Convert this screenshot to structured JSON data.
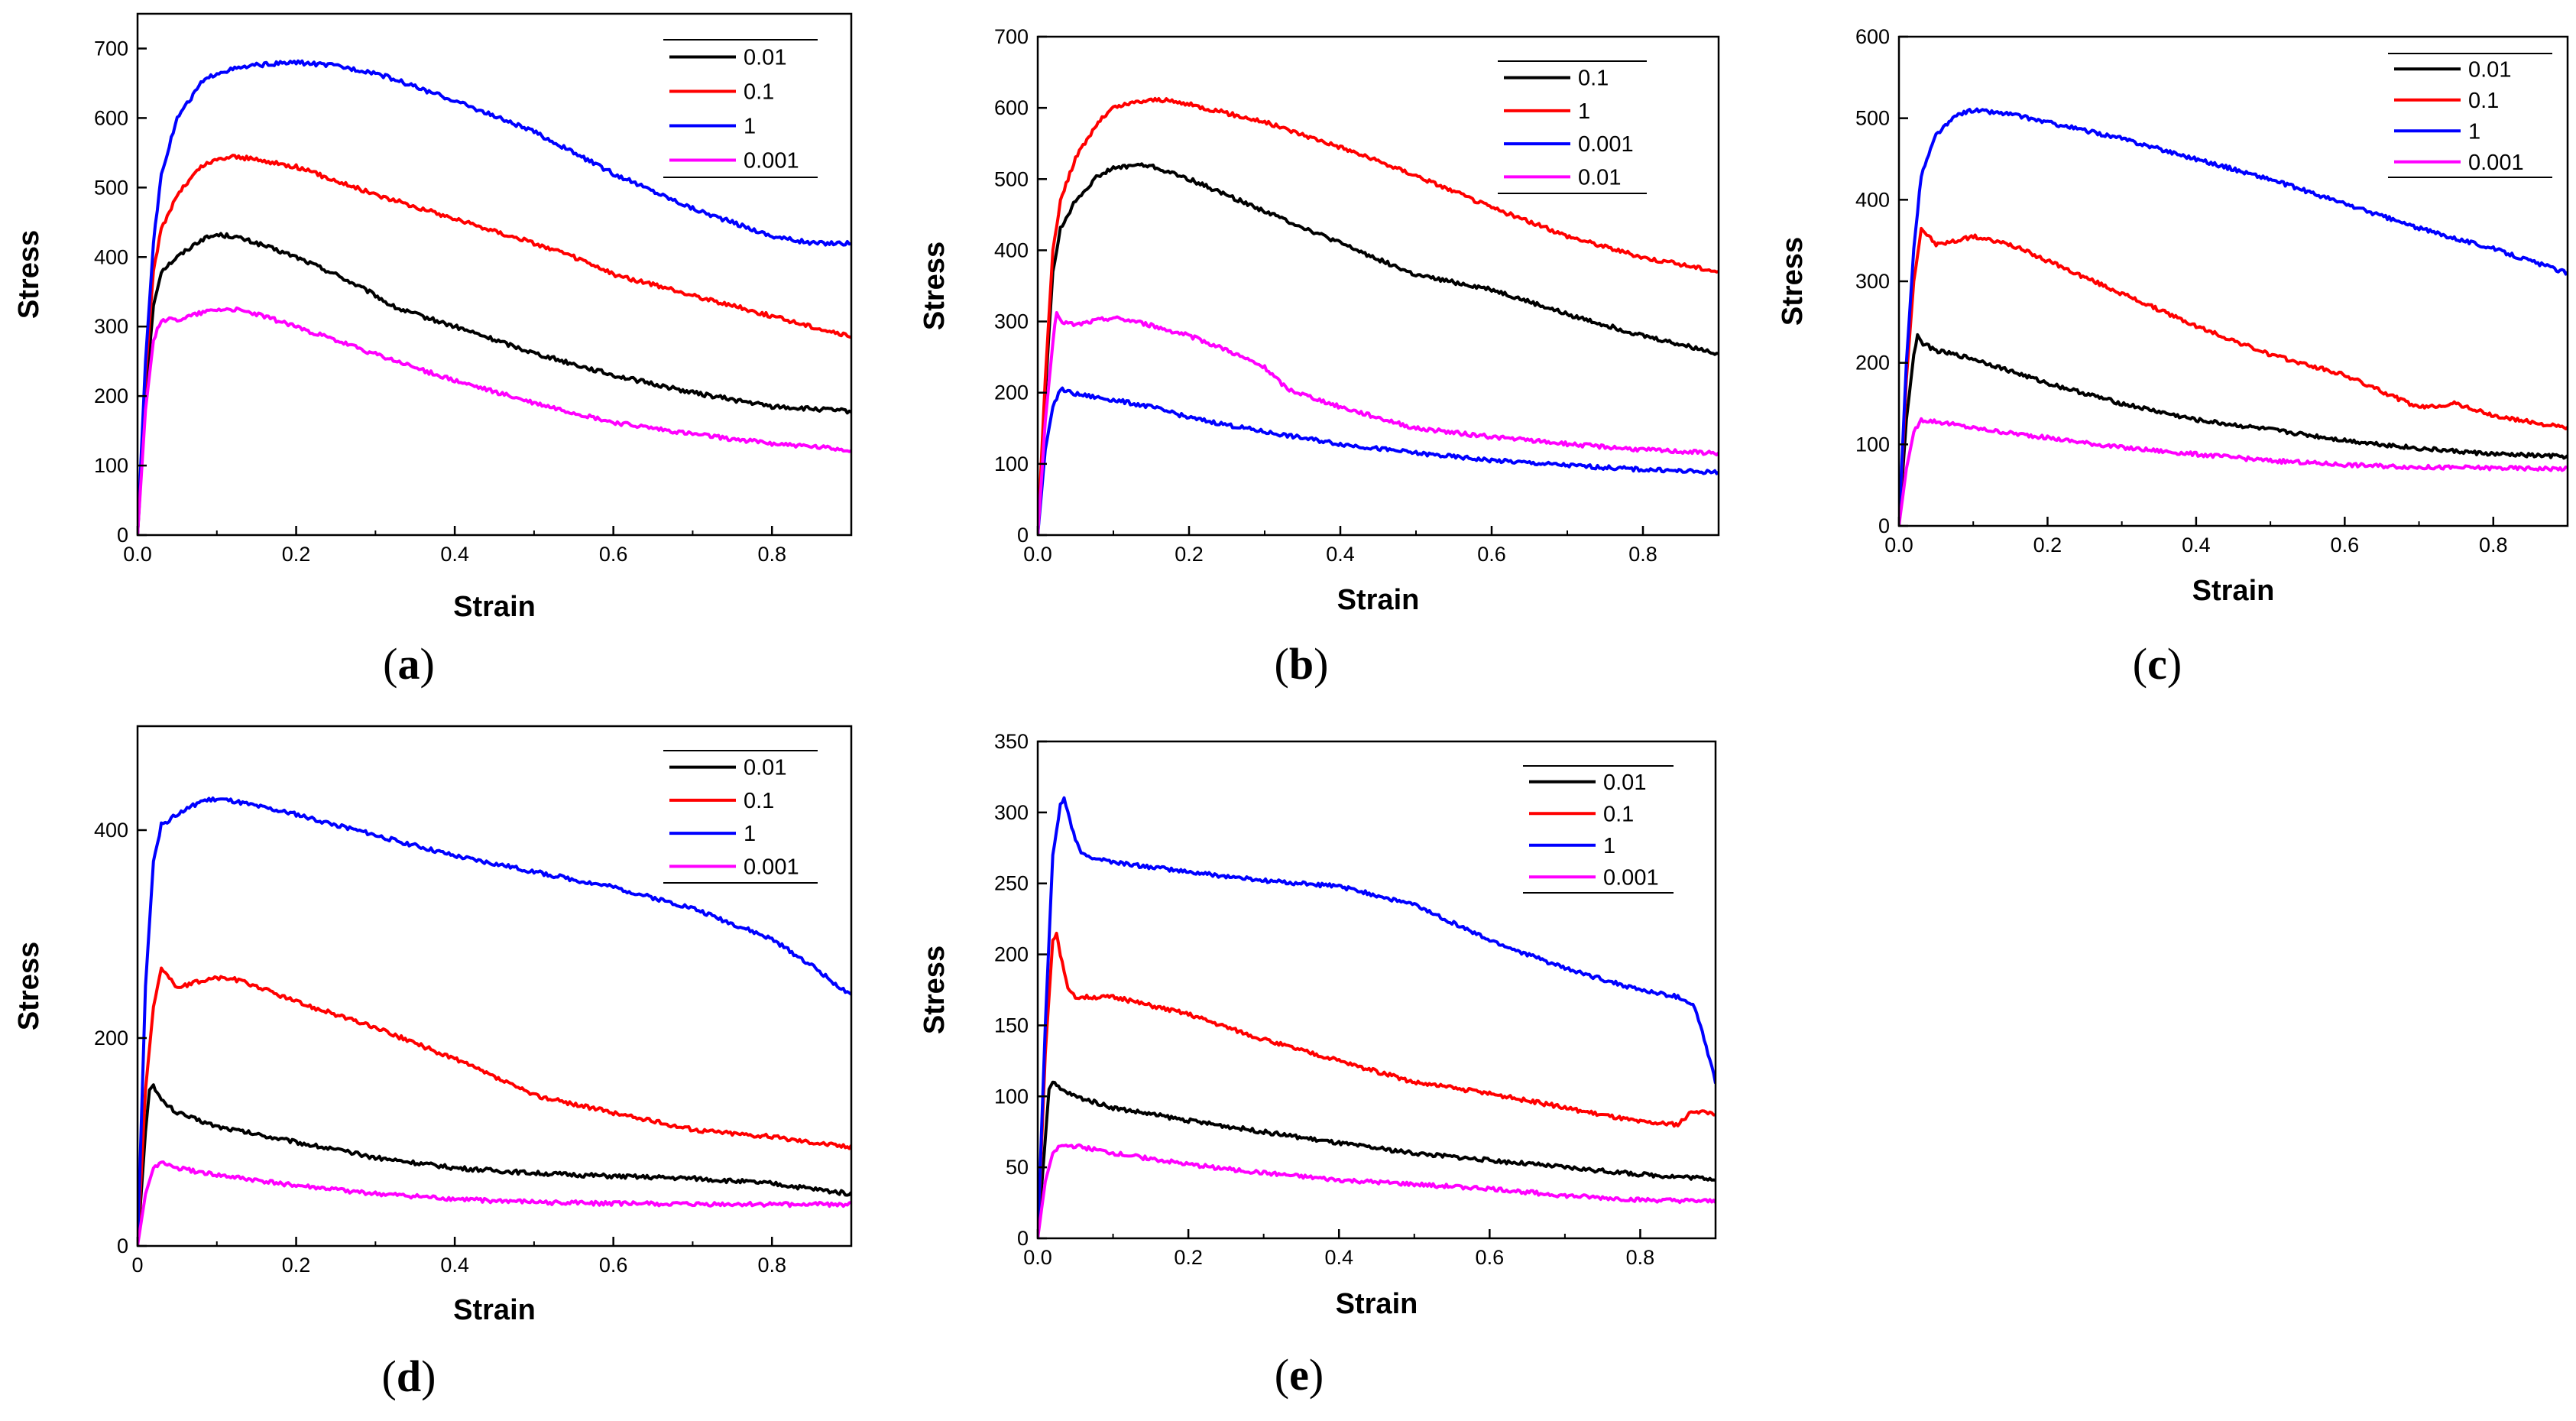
{
  "figure": {
    "description_labels": [
      "(a)",
      "(b)",
      "(c)",
      "(d)",
      "(e)"
    ]
  },
  "colors": {
    "0.01": "#000000",
    "0.1": "#ff0000",
    "1": "#0000ff",
    "0.001": "#ff00ff"
  },
  "chart_data": [
    {
      "type": "line",
      "panel_label": {
        "open": "(",
        "letter": "a",
        "close": ")"
      },
      "xlabel": "Strain",
      "ylabel": "Stress",
      "xlim": [
        0,
        0.9
      ],
      "ylim": [
        0,
        750
      ],
      "xticks": [
        "0.0",
        "0.2",
        "0.4",
        "0.6",
        "0.8"
      ],
      "xtick_values": [
        0,
        0.2,
        0.4,
        0.6,
        0.8
      ],
      "yticks": [
        "0",
        "100",
        "200",
        "300",
        "400",
        "500",
        "600",
        "700"
      ],
      "ytick_values": [
        0,
        100,
        200,
        300,
        400,
        500,
        600,
        700
      ],
      "legend_position": "top-right",
      "legend_order": [
        "0.01",
        "0.1",
        "1",
        "0.001"
      ],
      "series": [
        {
          "name": "0.01",
          "color": "#000000",
          "x": [
            0,
            0.01,
            0.02,
            0.03,
            0.05,
            0.08,
            0.1,
            0.12,
            0.15,
            0.2,
            0.25,
            0.3,
            0.32,
            0.33,
            0.4,
            0.5,
            0.6,
            0.7,
            0.8,
            0.9
          ],
          "y": [
            0,
            200,
            330,
            380,
            400,
            425,
            432,
            430,
            420,
            400,
            375,
            345,
            330,
            325,
            300,
            262,
            230,
            205,
            185,
            178
          ]
        },
        {
          "name": "0.1",
          "color": "#ff0000",
          "x": [
            0,
            0.01,
            0.02,
            0.03,
            0.05,
            0.08,
            0.1,
            0.12,
            0.15,
            0.2,
            0.3,
            0.4,
            0.5,
            0.55,
            0.6,
            0.7,
            0.8,
            0.9
          ],
          "y": [
            0,
            230,
            380,
            440,
            490,
            530,
            540,
            545,
            540,
            530,
            490,
            455,
            420,
            400,
            375,
            345,
            315,
            285
          ]
        },
        {
          "name": "1",
          "color": "#0000ff",
          "x": [
            0,
            0.01,
            0.02,
            0.03,
            0.05,
            0.08,
            0.1,
            0.12,
            0.15,
            0.2,
            0.25,
            0.3,
            0.4,
            0.5,
            0.6,
            0.7,
            0.8,
            0.85,
            0.9
          ],
          "y": [
            0,
            250,
            420,
            520,
            600,
            650,
            665,
            670,
            676,
            680,
            675,
            665,
            625,
            580,
            520,
            470,
            430,
            420,
            420
          ]
        },
        {
          "name": "0.001",
          "color": "#ff00ff",
          "x": [
            0,
            0.01,
            0.02,
            0.03,
            0.05,
            0.08,
            0.1,
            0.12,
            0.15,
            0.2,
            0.3,
            0.4,
            0.5,
            0.6,
            0.7,
            0.8,
            0.9
          ],
          "y": [
            0,
            180,
            280,
            310,
            310,
            320,
            325,
            325,
            318,
            300,
            260,
            222,
            190,
            162,
            145,
            132,
            122
          ]
        }
      ]
    },
    {
      "type": "line",
      "panel_label": {
        "open": "(",
        "letter": "b",
        "close": ")"
      },
      "xlabel": "Strain",
      "ylabel": "Stress",
      "xlim": [
        0,
        0.9
      ],
      "ylim": [
        0,
        700
      ],
      "xticks": [
        "0.0",
        "0.2",
        "0.4",
        "0.6",
        "0.8"
      ],
      "xtick_values": [
        0,
        0.2,
        0.4,
        0.6,
        0.8
      ],
      "yticks": [
        "0",
        "100",
        "200",
        "300",
        "400",
        "500",
        "600",
        "700"
      ],
      "ytick_values": [
        0,
        100,
        200,
        300,
        400,
        500,
        600,
        700
      ],
      "legend_position": "top-right",
      "legend_order": [
        "0.1",
        "1",
        "0.001",
        "0.01"
      ],
      "series": [
        {
          "name": "0.1",
          "color": "#000000",
          "x": [
            0,
            0.01,
            0.02,
            0.03,
            0.05,
            0.08,
            0.1,
            0.13,
            0.15,
            0.2,
            0.3,
            0.4,
            0.5,
            0.6,
            0.7,
            0.8,
            0.9
          ],
          "y": [
            0,
            200,
            370,
            430,
            470,
            505,
            515,
            520,
            518,
            500,
            455,
            410,
            365,
            345,
            310,
            280,
            255
          ]
        },
        {
          "name": "1",
          "color": "#ff0000",
          "x": [
            0,
            0.01,
            0.02,
            0.03,
            0.05,
            0.08,
            0.1,
            0.13,
            0.16,
            0.2,
            0.3,
            0.4,
            0.5,
            0.6,
            0.7,
            0.8,
            0.9
          ],
          "y": [
            0,
            220,
            400,
            470,
            530,
            580,
            600,
            608,
            612,
            605,
            580,
            545,
            505,
            460,
            420,
            390,
            370
          ]
        },
        {
          "name": "0.001",
          "color": "#0000ff",
          "x": [
            0,
            0.01,
            0.02,
            0.03,
            0.05,
            0.1,
            0.15,
            0.2,
            0.3,
            0.4,
            0.5,
            0.6,
            0.7,
            0.8,
            0.9
          ],
          "y": [
            0,
            120,
            180,
            205,
            198,
            190,
            180,
            165,
            145,
            128,
            115,
            105,
            98,
            92,
            88
          ]
        },
        {
          "name": "0.01",
          "color": "#ff00ff",
          "x": [
            0,
            0.01,
            0.02,
            0.025,
            0.03,
            0.05,
            0.08,
            0.1,
            0.13,
            0.2,
            0.25,
            0.3,
            0.33,
            0.4,
            0.5,
            0.6,
            0.7,
            0.8,
            0.9
          ],
          "y": [
            0,
            160,
            270,
            315,
            300,
            295,
            302,
            305,
            300,
            280,
            260,
            235,
            205,
            180,
            150,
            138,
            128,
            120,
            115
          ]
        }
      ]
    },
    {
      "type": "line",
      "panel_label": {
        "open": "(",
        "letter": "c",
        "close": ")"
      },
      "xlabel": "Strain",
      "ylabel": "Stress",
      "xlim": [
        0,
        0.9
      ],
      "ylim": [
        0,
        600
      ],
      "xticks": [
        "0.0",
        "0.2",
        "0.4",
        "0.6",
        "0.8"
      ],
      "xtick_values": [
        0,
        0.2,
        0.4,
        0.6,
        0.8
      ],
      "yticks": [
        "0",
        "100",
        "200",
        "300",
        "400",
        "500",
        "600"
      ],
      "ytick_values": [
        0,
        100,
        200,
        300,
        400,
        500,
        600
      ],
      "legend_position": "top-right",
      "legend_order": [
        "0.01",
        "0.1",
        "1",
        "0.001"
      ],
      "series": [
        {
          "name": "0.01",
          "color": "#000000",
          "x": [
            0,
            0.01,
            0.02,
            0.025,
            0.03,
            0.05,
            0.1,
            0.2,
            0.3,
            0.4,
            0.5,
            0.6,
            0.7,
            0.8,
            0.9
          ],
          "y": [
            0,
            130,
            210,
            235,
            225,
            215,
            205,
            175,
            150,
            130,
            118,
            105,
            95,
            88,
            85
          ]
        },
        {
          "name": "0.1",
          "color": "#ff0000",
          "x": [
            0,
            0.01,
            0.02,
            0.03,
            0.05,
            0.08,
            0.1,
            0.15,
            0.2,
            0.3,
            0.4,
            0.5,
            0.6,
            0.7,
            0.75,
            0.8,
            0.9
          ],
          "y": [
            0,
            180,
            300,
            365,
            345,
            350,
            355,
            345,
            325,
            285,
            245,
            210,
            185,
            145,
            150,
            135,
            120
          ]
        },
        {
          "name": "1",
          "color": "#0000ff",
          "x": [
            0,
            0.01,
            0.02,
            0.03,
            0.05,
            0.08,
            0.1,
            0.12,
            0.15,
            0.2,
            0.3,
            0.4,
            0.5,
            0.6,
            0.7,
            0.8,
            0.9
          ],
          "y": [
            0,
            200,
            340,
            430,
            480,
            505,
            510,
            508,
            505,
            495,
            475,
            450,
            425,
            395,
            365,
            340,
            310
          ]
        },
        {
          "name": "0.001",
          "color": "#ff00ff",
          "x": [
            0,
            0.01,
            0.02,
            0.03,
            0.05,
            0.1,
            0.2,
            0.3,
            0.4,
            0.5,
            0.6,
            0.7,
            0.8,
            0.9
          ],
          "y": [
            0,
            70,
            115,
            130,
            128,
            120,
            108,
            96,
            88,
            80,
            75,
            72,
            71,
            70
          ]
        }
      ]
    },
    {
      "type": "line",
      "panel_label": {
        "open": "(",
        "letter": "d",
        "close": ")"
      },
      "xlabel": "Strain",
      "ylabel": "Stress",
      "xlim": [
        0,
        0.9
      ],
      "ylim": [
        0,
        500
      ],
      "xticks": [
        "0",
        "0.2",
        "0.4",
        "0.6",
        "0.8"
      ],
      "xtick_values": [
        0,
        0.2,
        0.4,
        0.6,
        0.8
      ],
      "yticks": [
        "0",
        "200",
        "400"
      ],
      "ytick_values": [
        0,
        200,
        400
      ],
      "legend_position": "top-right",
      "legend_order": [
        "0.01",
        "0.1",
        "1",
        "0.001"
      ],
      "series": [
        {
          "name": "0.01",
          "color": "#000000",
          "x": [
            0,
            0.01,
            0.015,
            0.02,
            0.03,
            0.05,
            0.1,
            0.2,
            0.3,
            0.4,
            0.5,
            0.6,
            0.7,
            0.8,
            0.9
          ],
          "y": [
            0,
            110,
            150,
            155,
            140,
            128,
            115,
            100,
            85,
            75,
            70,
            67,
            65,
            60,
            50
          ]
        },
        {
          "name": "0.1",
          "color": "#ff0000",
          "x": [
            0,
            0.01,
            0.02,
            0.03,
            0.05,
            0.08,
            0.1,
            0.12,
            0.15,
            0.2,
            0.3,
            0.4,
            0.5,
            0.6,
            0.7,
            0.8,
            0.9
          ],
          "y": [
            0,
            150,
            230,
            268,
            248,
            255,
            258,
            257,
            250,
            235,
            210,
            180,
            145,
            128,
            112,
            105,
            95
          ]
        },
        {
          "name": "1",
          "color": "#0000ff",
          "x": [
            0,
            0.01,
            0.02,
            0.03,
            0.05,
            0.08,
            0.1,
            0.12,
            0.15,
            0.2,
            0.3,
            0.4,
            0.5,
            0.6,
            0.7,
            0.8,
            0.85,
            0.9
          ],
          "y": [
            0,
            250,
            370,
            405,
            415,
            428,
            430,
            428,
            423,
            415,
            395,
            375,
            360,
            345,
            325,
            295,
            270,
            240
          ]
        },
        {
          "name": "0.001",
          "color": "#ff00ff",
          "x": [
            0,
            0.01,
            0.02,
            0.03,
            0.05,
            0.1,
            0.2,
            0.3,
            0.4,
            0.5,
            0.6,
            0.7,
            0.8,
            0.9
          ],
          "y": [
            0,
            50,
            75,
            80,
            75,
            68,
            58,
            50,
            45,
            42,
            41,
            40,
            40,
            40
          ]
        }
      ]
    },
    {
      "type": "line",
      "panel_label": {
        "open": "(",
        "letter": "e",
        "close": ")"
      },
      "xlabel": "Strain",
      "ylabel": "Stress",
      "xlim": [
        0,
        0.9
      ],
      "ylim": [
        0,
        350
      ],
      "xticks": [
        "0.0",
        "0.2",
        "0.4",
        "0.6",
        "0.8"
      ],
      "xtick_values": [
        0,
        0.2,
        0.4,
        0.6,
        0.8
      ],
      "yticks": [
        "0",
        "50",
        "100",
        "150",
        "200",
        "250",
        "300",
        "350"
      ],
      "ytick_values": [
        0,
        50,
        100,
        150,
        200,
        250,
        300,
        350
      ],
      "legend_position": "top-right",
      "legend_order": [
        "0.01",
        "0.1",
        "1",
        "0.001"
      ],
      "series": [
        {
          "name": "0.01",
          "color": "#000000",
          "x": [
            0,
            0.01,
            0.015,
            0.02,
            0.03,
            0.05,
            0.1,
            0.2,
            0.3,
            0.4,
            0.5,
            0.6,
            0.7,
            0.8,
            0.9
          ],
          "y": [
            0,
            70,
            105,
            110,
            105,
            100,
            92,
            83,
            75,
            67,
            60,
            55,
            50,
            45,
            42
          ]
        },
        {
          "name": "0.1",
          "color": "#ff0000",
          "x": [
            0,
            0.01,
            0.02,
            0.025,
            0.03,
            0.04,
            0.05,
            0.1,
            0.2,
            0.3,
            0.4,
            0.5,
            0.6,
            0.7,
            0.8,
            0.85,
            0.87,
            0.9
          ],
          "y": [
            0,
            130,
            210,
            215,
            200,
            175,
            170,
            170,
            158,
            140,
            125,
            110,
            102,
            92,
            82,
            80,
            90,
            88
          ]
        },
        {
          "name": "1",
          "color": "#0000ff",
          "x": [
            0,
            0.01,
            0.02,
            0.03,
            0.035,
            0.04,
            0.05,
            0.06,
            0.1,
            0.2,
            0.3,
            0.4,
            0.5,
            0.6,
            0.7,
            0.8,
            0.85,
            0.87,
            0.88,
            0.9
          ],
          "y": [
            0,
            150,
            270,
            305,
            310,
            300,
            280,
            270,
            265,
            258,
            252,
            248,
            235,
            210,
            190,
            175,
            170,
            165,
            150,
            110
          ]
        },
        {
          "name": "0.001",
          "color": "#ff00ff",
          "x": [
            0,
            0.01,
            0.02,
            0.03,
            0.05,
            0.1,
            0.2,
            0.3,
            0.4,
            0.5,
            0.6,
            0.7,
            0.8,
            0.9
          ],
          "y": [
            0,
            40,
            60,
            65,
            65,
            60,
            52,
            46,
            41,
            38,
            35,
            30,
            27,
            26
          ]
        }
      ]
    }
  ]
}
